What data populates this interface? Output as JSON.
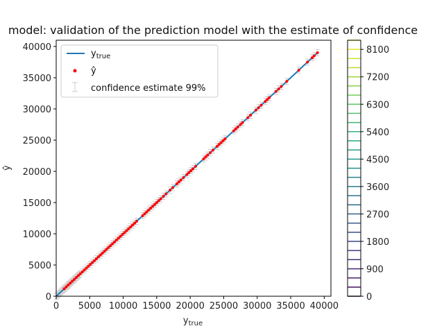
{
  "chart_data": {
    "type": "line",
    "title": "model: validation of the prediction model with the estimate of confidence",
    "xlabel": "y_true",
    "ylabel": "ŷ",
    "xlim": [
      0,
      41000
    ],
    "ylim": [
      0,
      41000
    ],
    "xticks": [
      0,
      5000,
      10000,
      15000,
      20000,
      25000,
      30000,
      35000,
      40000
    ],
    "yticks": [
      0,
      5000,
      10000,
      15000,
      20000,
      25000,
      30000,
      35000,
      40000
    ],
    "grid": false,
    "legend_position": "top-left",
    "legend": [
      "y_true",
      "ŷ",
      "confidence estimate 99%"
    ],
    "series": [
      {
        "name": "y_true",
        "kind": "line",
        "color": "#1f77b4",
        "x": [
          0,
          39000
        ],
        "values": [
          0,
          39000
        ]
      },
      {
        "name": "ŷ",
        "kind": "scatter",
        "color": "#ff0000",
        "x": [
          1200,
          1500,
          1800,
          2100,
          2400,
          2700,
          3000,
          3300,
          3600,
          3900,
          4200,
          4500,
          4800,
          5100,
          5400,
          5700,
          6000,
          6300,
          6600,
          6900,
          7200,
          7500,
          7800,
          8100,
          8400,
          8700,
          9000,
          9300,
          9600,
          9900,
          10200,
          10500,
          10800,
          11100,
          11400,
          11700,
          12000,
          12900,
          13200,
          13500,
          13800,
          14100,
          14400,
          14700,
          15000,
          15300,
          15600,
          16000,
          16400,
          17000,
          17400,
          18000,
          18300,
          18600,
          19000,
          19500,
          19800,
          20100,
          20400,
          20800,
          22000,
          22300,
          22600,
          23000,
          23400,
          24000,
          24300,
          24600,
          24900,
          25200,
          26500,
          26800,
          27100,
          27500,
          27800,
          28600,
          29000,
          29800,
          30200,
          30600,
          31200,
          31500,
          31800,
          32800,
          33200,
          33600,
          34400,
          36200,
          37500,
          38200,
          38500,
          39000
        ],
        "values": [
          1200,
          1500,
          1800,
          2100,
          2400,
          2700,
          3000,
          3300,
          3600,
          3900,
          4200,
          4500,
          4800,
          5100,
          5400,
          5700,
          6000,
          6300,
          6600,
          6900,
          7200,
          7500,
          7800,
          8100,
          8400,
          8700,
          9000,
          9300,
          9600,
          9900,
          10200,
          10500,
          10800,
          11100,
          11400,
          11700,
          12000,
          12900,
          13200,
          13500,
          13800,
          14100,
          14400,
          14700,
          15000,
          15300,
          15600,
          16000,
          16400,
          17000,
          17400,
          18000,
          18300,
          18600,
          19000,
          19500,
          19800,
          20100,
          20400,
          20800,
          22000,
          22300,
          22600,
          23000,
          23400,
          24000,
          24300,
          24600,
          24900,
          25200,
          26500,
          26800,
          27100,
          27500,
          27800,
          28600,
          29000,
          29800,
          30200,
          30600,
          31200,
          31500,
          31800,
          32800,
          33200,
          33600,
          34400,
          36200,
          37500,
          38200,
          38500,
          39000
        ]
      },
      {
        "name": "confidence estimate 99%",
        "kind": "errorbar",
        "color": "#cccccc",
        "half_width": 500
      }
    ],
    "colorbar": {
      "colormap": "viridis",
      "range": [
        0,
        8400
      ],
      "ticks": [
        0,
        900,
        1800,
        2700,
        3600,
        4500,
        5400,
        6300,
        7200,
        8100
      ],
      "levels": [
        0,
        300,
        600,
        900,
        1200,
        1500,
        1800,
        2100,
        2400,
        2700,
        3000,
        3300,
        3600,
        3900,
        4200,
        4500,
        4800,
        5100,
        5400,
        5700,
        6000,
        6300,
        6600,
        6900,
        7200,
        7500,
        7800,
        8100,
        8400
      ]
    }
  }
}
